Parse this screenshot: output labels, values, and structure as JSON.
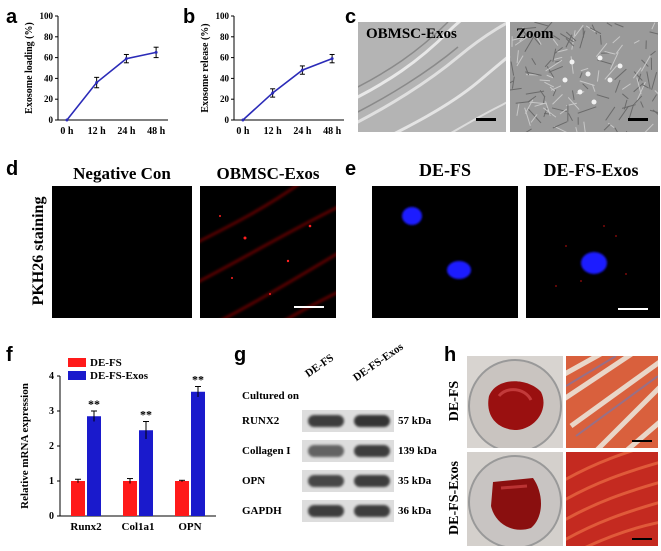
{
  "panels": {
    "a": "a",
    "b": "b",
    "c": "c",
    "d": "d",
    "e": "e",
    "f": "f",
    "g": "g",
    "h": "h"
  },
  "chart_loading": {
    "type": "line",
    "categories": [
      "0 h",
      "12 h",
      "24 h",
      "48 h"
    ],
    "values": [
      0,
      36,
      59,
      65
    ],
    "errors": [
      0,
      5,
      4,
      5
    ],
    "ylabel": "Exosome loading (%)",
    "yticks": [
      "0",
      "20",
      "40",
      "60",
      "80",
      "100"
    ],
    "ylim": [
      0,
      100
    ],
    "color": "#2b2bb8"
  },
  "chart_release": {
    "type": "line",
    "categories": [
      "0 h",
      "12 h",
      "24 h",
      "48 h"
    ],
    "values": [
      0,
      26,
      48,
      59
    ],
    "errors": [
      0,
      4,
      4,
      4
    ],
    "ylabel": "Exosome release (%)",
    "yticks": [
      "0",
      "20",
      "40",
      "60",
      "80",
      "100"
    ],
    "ylim": [
      0,
      100
    ],
    "color": "#2b2bb8"
  },
  "sem": {
    "left_label": "OBMSC-Exos",
    "right_label": "Zoom"
  },
  "pkh": {
    "side_label": "PKH26 staining",
    "left_title": "Negative Con",
    "right_title": "OBMSC-Exos"
  },
  "fluor": {
    "left_title": "DE-FS",
    "right_title": "DE-FS-Exos"
  },
  "chart_data": {
    "type": "bar",
    "categories": [
      "Runx2",
      "Col1a1",
      "OPN"
    ],
    "series": [
      {
        "name": "DE-FS",
        "values": [
          1.0,
          1.0,
          1.0
        ],
        "errors": [
          0.05,
          0.07,
          0.02
        ],
        "color": "#ff1a1a"
      },
      {
        "name": "DE-FS-Exos",
        "values": [
          2.85,
          2.45,
          3.55
        ],
        "errors": [
          0.15,
          0.25,
          0.15
        ],
        "color": "#1a1acc"
      }
    ],
    "ylabel": "Relative mRNA expression",
    "yticks": [
      "0",
      "1",
      "2",
      "3",
      "4"
    ],
    "ylim": [
      0,
      4
    ],
    "annotations": [
      "**",
      "**",
      "**"
    ],
    "legend": "top-left"
  },
  "western": {
    "cultured_on": "Cultured on",
    "col1": "DE-FS",
    "col2": "DE-FS-Exos",
    "rows": [
      {
        "name": "RUNX2",
        "kda": "57 kDa",
        "b1": 0.55,
        "b2": 0.6
      },
      {
        "name": "Collagen I",
        "kda": "139 kDa",
        "b1": 0.35,
        "b2": 0.55
      },
      {
        "name": "OPN",
        "kda": "35 kDa",
        "b1": 0.5,
        "b2": 0.55
      },
      {
        "name": "GAPDH",
        "kda": "36 kDa",
        "b1": 0.55,
        "b2": 0.55
      }
    ]
  },
  "photos": {
    "row1_label": "DE-FS",
    "row2_label": "DE-FS-Exos"
  }
}
